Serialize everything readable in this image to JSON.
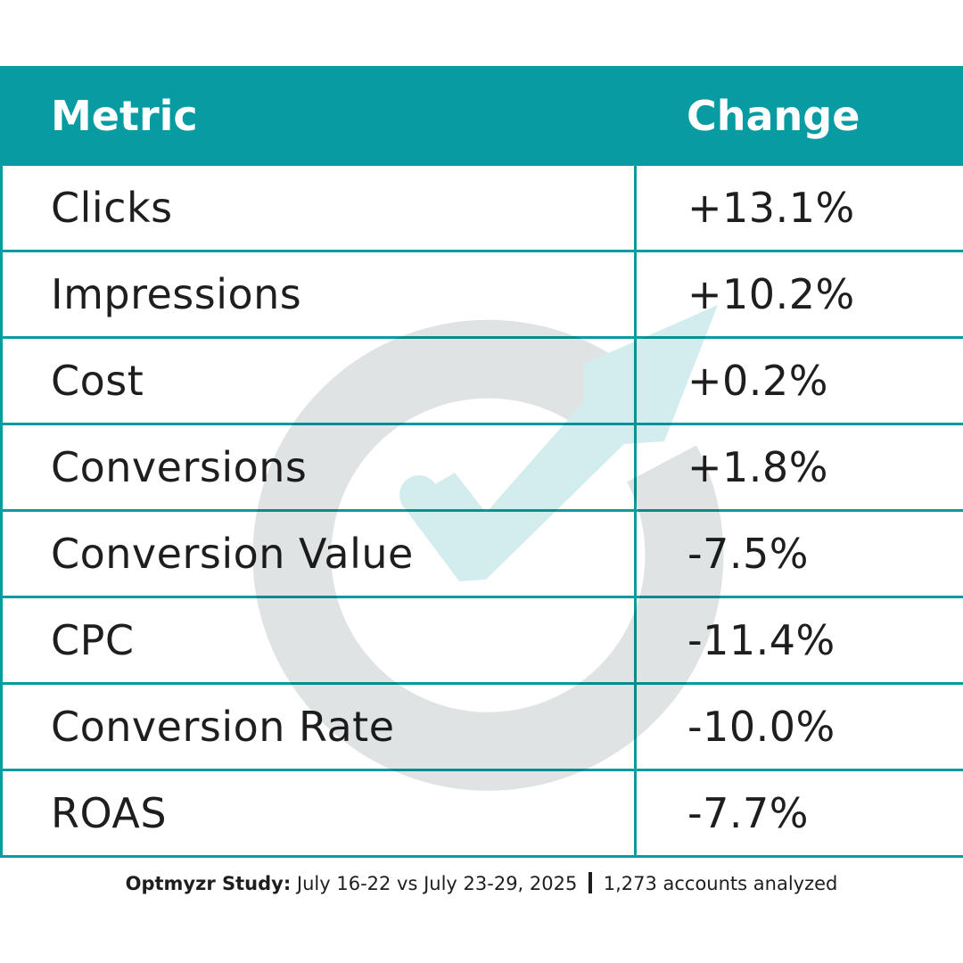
{
  "chart_data": {
    "type": "table",
    "columns": [
      "Metric",
      "Change"
    ],
    "rows": [
      {
        "metric": "Clicks",
        "change": "+13.1%"
      },
      {
        "metric": "Impressions",
        "change": "+10.2%"
      },
      {
        "metric": "Cost",
        "change": "+0.2%"
      },
      {
        "metric": "Conversions",
        "change": "+1.8%"
      },
      {
        "metric": "Conversion Value",
        "change": "-7.5%"
      },
      {
        "metric": "CPC",
        "change": "-11.4%"
      },
      {
        "metric": "Conversion Rate",
        "change": "-10.0%"
      },
      {
        "metric": "ROAS",
        "change": "-7.7%"
      }
    ]
  },
  "footer": {
    "brand": "Optmyzr Study:",
    "period": " July 16-22 vs July 23-29, 2025 ",
    "accounts": " 1,273 accounts analyzed"
  },
  "colors": {
    "header_bg": "#089ba2",
    "border": "#089ba2",
    "watermark_ring": "#dfe3e3",
    "watermark_arrow": "#d3edef"
  },
  "watermark": {
    "icon": "optmyzr-logo-icon"
  }
}
